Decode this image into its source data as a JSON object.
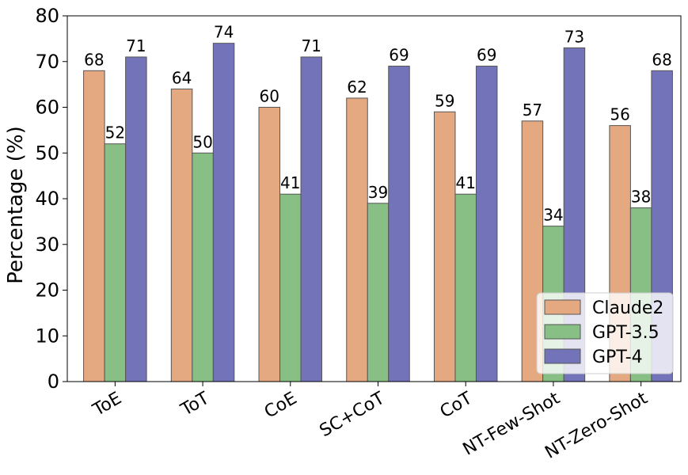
{
  "chart_data": {
    "type": "bar",
    "categories": [
      "ToE",
      "ToT",
      "CoE",
      "SC+CoT",
      "CoT",
      "NT-Few-Shot",
      "NT-Zero-Shot"
    ],
    "series": [
      {
        "name": "Claude2",
        "values": [
          68,
          64,
          60,
          62,
          59,
          57,
          56
        ],
        "color": "#e5a982"
      },
      {
        "name": "GPT-3.5",
        "values": [
          52,
          50,
          41,
          39,
          41,
          34,
          38
        ],
        "color": "#88bf85"
      },
      {
        "name": "GPT-4",
        "values": [
          71,
          74,
          71,
          69,
          69,
          73,
          68
        ],
        "color": "#7373b9"
      }
    ],
    "title": "",
    "xlabel": "",
    "ylabel": "Percentage (%)",
    "ylim": [
      0,
      80
    ],
    "yticks": [
      0,
      10,
      20,
      30,
      40,
      50,
      60,
      70,
      80
    ],
    "ytick_labels": [
      "0",
      "10",
      "20",
      "30",
      "40",
      "50",
      "60",
      "70",
      "80"
    ],
    "grid": false,
    "legend_position": "bottom-right",
    "bar_edge_color": "#555555",
    "x_tick_rotation": "rotated"
  }
}
